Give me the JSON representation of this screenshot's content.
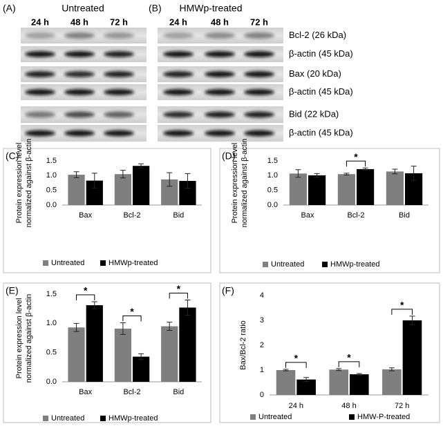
{
  "blots": {
    "panels": [
      {
        "label": "(A)",
        "title": "Untreated",
        "lanes": [
          "24 h",
          "48 h",
          "72 h"
        ]
      },
      {
        "label": "(B)",
        "title": "HMWp-treated",
        "lanes": [
          "24 h",
          "48 h",
          "72 h"
        ]
      }
    ],
    "rows": [
      "Bcl-2 (26 kDa)",
      "β-actin (45 kDa)",
      "Bax (20 kDa)",
      "β-actin (45 kDa)",
      "Bid (22 kDa)",
      "β-actin (45 kDa)"
    ]
  },
  "chart_data": [
    {
      "type": "bar",
      "panel": "(C)",
      "y_label": [
        "Protein expression level",
        "normalized against β-actin"
      ],
      "categories": [
        "Bax",
        "Bcl-2",
        "Bid"
      ],
      "series": [
        {
          "name": "Untreated",
          "color": "#7f7f7f",
          "values": [
            1.03,
            1.05,
            0.87
          ],
          "errors": [
            0.1,
            0.13,
            0.23
          ]
        },
        {
          "name": "HMWp-treated",
          "color": "#000000",
          "values": [
            0.83,
            1.33,
            0.82
          ],
          "errors": [
            0.25,
            0.07,
            0.25
          ]
        }
      ],
      "ylim": [
        0,
        1.5
      ],
      "yticks": [
        {
          "value": 0,
          "label": "0.0"
        },
        {
          "value": 0.5,
          "label": "0.5"
        },
        {
          "value": 1,
          "label": "1.0"
        },
        {
          "value": 1.5,
          "label": "1.5"
        }
      ],
      "annotations": []
    },
    {
      "type": "bar",
      "panel": "(D)",
      "y_label": [
        "Protein expression level",
        "normalized against β-actin"
      ],
      "categories": [
        "Bax",
        "Bcl-2",
        "Bid"
      ],
      "series": [
        {
          "name": "Untreated",
          "color": "#7f7f7f",
          "values": [
            1.07,
            1.05,
            1.14
          ],
          "errors": [
            0.13,
            0.03,
            0.08
          ]
        },
        {
          "name": "HMWp-treated",
          "color": "#000000",
          "values": [
            1.01,
            1.22,
            1.08
          ],
          "errors": [
            0.06,
            0.04,
            0.24
          ]
        }
      ],
      "ylim": [
        0,
        1.5
      ],
      "yticks": [
        {
          "value": 0,
          "label": "0.0"
        },
        {
          "value": 0.5,
          "label": "0.5"
        },
        {
          "value": 1,
          "label": "1.0"
        },
        {
          "value": 1.5,
          "label": "1.5"
        }
      ],
      "annotations": [
        {
          "category": "Bcl-2",
          "text": "*"
        }
      ]
    },
    {
      "type": "bar",
      "panel": "(E)",
      "y_label": [
        "Protein expression level",
        "normalized against β-actin"
      ],
      "categories": [
        "Bax",
        "Bcl-2",
        "Bid"
      ],
      "series": [
        {
          "name": "Untreated",
          "color": "#7f7f7f",
          "values": [
            0.93,
            0.91,
            0.95
          ],
          "errors": [
            0.07,
            0.1,
            0.07
          ]
        },
        {
          "name": "HMWp-treated",
          "color": "#000000",
          "values": [
            1.31,
            0.43,
            1.27
          ],
          "errors": [
            0.06,
            0.05,
            0.13
          ]
        }
      ],
      "ylim": [
        0,
        1.5
      ],
      "yticks": [
        {
          "value": 0,
          "label": "0.0"
        },
        {
          "value": 0.5,
          "label": "0.5"
        },
        {
          "value": 1,
          "label": "1.0"
        },
        {
          "value": 1.5,
          "label": "1.5"
        }
      ],
      "annotations": [
        {
          "category": "Bax",
          "text": "*"
        },
        {
          "category": "Bcl-2",
          "text": "*"
        },
        {
          "category": "Bid",
          "text": "*"
        }
      ]
    },
    {
      "type": "bar",
      "panel": "(F)",
      "y_label": [
        "Bax/Bcl-2 ratio"
      ],
      "categories": [
        "24 h",
        "48 h",
        "72 h"
      ],
      "series": [
        {
          "name": "Untreated",
          "color": "#7f7f7f",
          "values": [
            1.0,
            1.02,
            1.03
          ],
          "errors": [
            0.03,
            0.04,
            0.06
          ]
        },
        {
          "name": "HMW-P-treated",
          "color": "#000000",
          "values": [
            0.62,
            0.83,
            3.0
          ],
          "errors": [
            0.08,
            0.03,
            0.17
          ]
        }
      ],
      "ylim": [
        0,
        4
      ],
      "yticks": [
        0,
        1,
        2,
        3,
        4
      ],
      "annotations": [
        {
          "category": "24 h",
          "text": "*"
        },
        {
          "category": "48 h",
          "text": "*"
        },
        {
          "category": "72 h",
          "text": "*"
        }
      ]
    }
  ]
}
